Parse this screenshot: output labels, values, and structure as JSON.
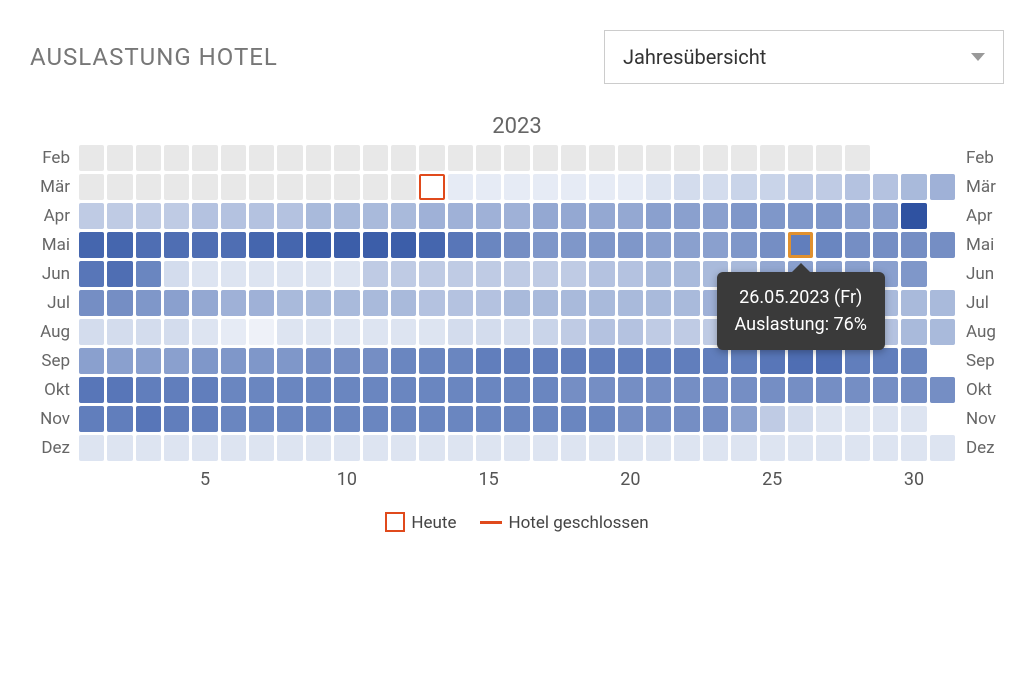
{
  "title": "AUSLASTUNG HOTEL",
  "view_selector": {
    "selected": "Jahresübersicht"
  },
  "chart": {
    "type": "heatmap",
    "year_label": "2023",
    "months": [
      "Feb",
      "Mär",
      "Apr",
      "Mai",
      "Jun",
      "Jul",
      "Aug",
      "Sep",
      "Okt",
      "Nov",
      "Dez"
    ],
    "days_in_month": [
      28,
      31,
      30,
      31,
      30,
      31,
      31,
      30,
      31,
      30,
      31
    ],
    "x_ticks": [
      5,
      10,
      15,
      20,
      25,
      30
    ],
    "color_scale": {
      "0": "#e8e8e8",
      "5": "#eef1f8",
      "10": "#e6ebf5",
      "15": "#dde4f1",
      "20": "#d3dced",
      "25": "#c9d4e9",
      "30": "#bfcbe4",
      "35": "#b4c2e0",
      "40": "#a9badb",
      "45": "#9fb1d7",
      "50": "#94a8d2",
      "55": "#8aa0ce",
      "60": "#7f97c9",
      "65": "#758ec4",
      "70": "#6a86c0",
      "75": "#617ebc",
      "80": "#5876b8",
      "85": "#4f6eb3",
      "90": "#4566ae",
      "95": "#3c5ea9",
      "100": "#2f52a1"
    },
    "today_marker": {
      "month": "Mär",
      "day": 13,
      "color": "#e04a1c"
    },
    "highlight_cell": {
      "month": "Mai",
      "day": 26,
      "color": "#e0902e"
    },
    "tooltip": {
      "line1": "26.05.2023 (Fr)",
      "line2": "Auslastung: 76%",
      "bg": "#3a3a3a",
      "text_color": "#ffffff"
    },
    "values": {
      "Feb": [
        0,
        0,
        0,
        0,
        0,
        0,
        0,
        0,
        0,
        0,
        0,
        0,
        0,
        0,
        0,
        0,
        0,
        0,
        0,
        0,
        0,
        0,
        0,
        0,
        0,
        0,
        0,
        0
      ],
      "Mär": [
        0,
        0,
        0,
        0,
        0,
        0,
        0,
        0,
        0,
        0,
        0,
        0,
        5,
        10,
        10,
        10,
        10,
        10,
        10,
        10,
        15,
        20,
        20,
        25,
        25,
        30,
        30,
        35,
        35,
        40,
        45
      ],
      "Apr": [
        30,
        30,
        30,
        30,
        35,
        35,
        35,
        35,
        40,
        40,
        40,
        40,
        45,
        45,
        45,
        45,
        50,
        50,
        50,
        50,
        55,
        55,
        55,
        60,
        60,
        60,
        60,
        55,
        55,
        100
      ],
      "Mai": [
        90,
        90,
        85,
        85,
        85,
        85,
        90,
        90,
        95,
        95,
        95,
        95,
        90,
        80,
        70,
        65,
        60,
        60,
        60,
        60,
        55,
        55,
        55,
        60,
        65,
        76,
        70,
        65,
        65,
        65,
        65
      ],
      "Jun": [
        80,
        85,
        70,
        20,
        15,
        15,
        15,
        15,
        15,
        15,
        30,
        30,
        30,
        30,
        30,
        30,
        30,
        30,
        35,
        35,
        40,
        40,
        40,
        40,
        50,
        55,
        55,
        55,
        55,
        60
      ],
      "Jul": [
        65,
        65,
        60,
        55,
        50,
        45,
        45,
        40,
        40,
        40,
        40,
        40,
        35,
        35,
        35,
        40,
        40,
        40,
        40,
        40,
        40,
        40,
        45,
        45,
        45,
        45,
        45,
        40,
        40,
        40,
        40
      ],
      "Aug": [
        20,
        20,
        20,
        20,
        15,
        10,
        5,
        15,
        15,
        15,
        15,
        15,
        15,
        20,
        20,
        20,
        25,
        30,
        35,
        35,
        30,
        30,
        30,
        30,
        30,
        30,
        35,
        35,
        35,
        40,
        40
      ],
      "Sep": [
        55,
        55,
        55,
        55,
        60,
        60,
        60,
        60,
        65,
        65,
        65,
        70,
        70,
        70,
        75,
        75,
        75,
        75,
        75,
        75,
        75,
        75,
        75,
        75,
        80,
        85,
        85,
        75,
        75,
        70
      ],
      "Okt": [
        80,
        80,
        75,
        75,
        75,
        72,
        72,
        70,
        70,
        70,
        70,
        70,
        70,
        70,
        70,
        70,
        70,
        68,
        68,
        68,
        68,
        68,
        68,
        68,
        68,
        68,
        65,
        65,
        65,
        65,
        65
      ],
      "Nov": [
        75,
        78,
        80,
        78,
        75,
        70,
        70,
        70,
        70,
        70,
        72,
        72,
        72,
        70,
        70,
        70,
        70,
        70,
        70,
        68,
        68,
        68,
        65,
        55,
        30,
        20,
        15,
        15,
        15,
        15
      ],
      "Dez": [
        15,
        15,
        15,
        15,
        15,
        15,
        15,
        15,
        15,
        15,
        15,
        15,
        15,
        15,
        15,
        15,
        15,
        15,
        15,
        15,
        15,
        15,
        15,
        15,
        15,
        15,
        15,
        15,
        15,
        15,
        15
      ]
    }
  },
  "legend": {
    "today": "Heute",
    "closed": "Hotel geschlossen"
  }
}
